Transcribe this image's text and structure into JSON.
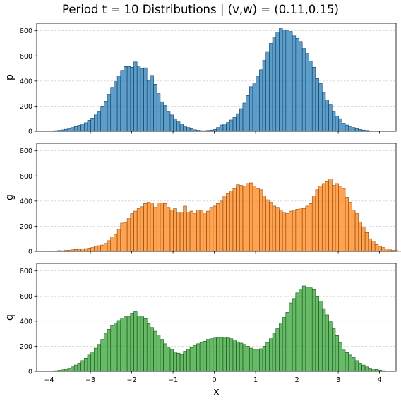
{
  "title": "Period t = 10 Distributions | (v,w) = (0.11,0.15)",
  "chart_data": [
    {
      "type": "bar",
      "ylabel": "p",
      "xlabel": "",
      "color": "#1f77b4",
      "ylim": [
        0,
        860
      ],
      "xlim": [
        -4.3,
        4.4
      ],
      "yticks": [
        0,
        200,
        400,
        600,
        800
      ],
      "xticks": [
        -4,
        -3,
        -2,
        -1,
        0,
        1,
        2,
        3,
        4
      ],
      "grid": "y dashed",
      "bin_start": -3.95,
      "bin_width": 0.08,
      "values": [
        2,
        5,
        8,
        11,
        16,
        22,
        30,
        38,
        48,
        58,
        68,
        88,
        105,
        130,
        160,
        200,
        240,
        295,
        350,
        395,
        440,
        485,
        515,
        515,
        510,
        552,
        520,
        500,
        505,
        405,
        445,
        375,
        300,
        235,
        205,
        160,
        130,
        100,
        75,
        58,
        40,
        30,
        20,
        12,
        8,
        5,
        5,
        7,
        10,
        15,
        30,
        50,
        60,
        70,
        90,
        110,
        140,
        180,
        225,
        285,
        355,
        385,
        435,
        490,
        565,
        635,
        700,
        750,
        790,
        820,
        808,
        808,
        795,
        760,
        740,
        715,
        660,
        620,
        560,
        510,
        420,
        380,
        310,
        250,
        210,
        160,
        120,
        100,
        65,
        50,
        40,
        30,
        22,
        15,
        10,
        7,
        4
      ]
    },
    {
      "type": "bar",
      "ylabel": "g",
      "xlabel": "",
      "color": "#ff7f0e",
      "ylim": [
        0,
        860
      ],
      "xlim": [
        -4.3,
        4.4
      ],
      "yticks": [
        0,
        200,
        400,
        600,
        800
      ],
      "xticks": [
        -4,
        -3,
        -2,
        -1,
        0,
        1,
        2,
        3,
        4
      ],
      "grid": "y dashed",
      "bin_start": -3.95,
      "bin_width": 0.08,
      "values": [
        0,
        3,
        6,
        5,
        8,
        9,
        12,
        15,
        17,
        20,
        22,
        26,
        30,
        40,
        45,
        50,
        63,
        85,
        115,
        135,
        175,
        225,
        230,
        260,
        300,
        320,
        340,
        355,
        380,
        390,
        385,
        350,
        385,
        385,
        380,
        350,
        330,
        340,
        310,
        310,
        360,
        310,
        320,
        300,
        330,
        330,
        305,
        320,
        350,
        360,
        380,
        400,
        440,
        460,
        480,
        500,
        530,
        525,
        520,
        540,
        545,
        520,
        500,
        490,
        440,
        410,
        390,
        360,
        350,
        330,
        310,
        300,
        320,
        330,
        335,
        345,
        340,
        360,
        380,
        440,
        490,
        520,
        540,
        555,
        575,
        525,
        540,
        520,
        500,
        430,
        390,
        330,
        300,
        235,
        195,
        150,
        100,
        82,
        55,
        40,
        30,
        21,
        12,
        8,
        6,
        3
      ]
    },
    {
      "type": "bar",
      "ylabel": "q",
      "xlabel": "x",
      "color": "#2ca02c",
      "ylim": [
        0,
        860
      ],
      "xlim": [
        -4.3,
        4.4
      ],
      "yticks": [
        0,
        200,
        400,
        600,
        800
      ],
      "xticks": [
        -4,
        -3,
        -2,
        -1,
        0,
        1,
        2,
        3,
        4
      ],
      "xticklabels": [
        "−4",
        "−3",
        "−2",
        "−1",
        "0",
        "1",
        "2",
        "3",
        "4"
      ],
      "grid": "y dashed",
      "bin_start": -3.95,
      "bin_width": 0.08,
      "values": [
        3,
        5,
        8,
        12,
        17,
        25,
        35,
        50,
        65,
        85,
        105,
        130,
        155,
        185,
        215,
        255,
        300,
        335,
        365,
        385,
        405,
        425,
        435,
        435,
        460,
        475,
        440,
        440,
        420,
        380,
        350,
        320,
        290,
        255,
        220,
        195,
        175,
        155,
        145,
        135,
        160,
        175,
        190,
        205,
        220,
        230,
        240,
        255,
        260,
        265,
        270,
        270,
        265,
        270,
        260,
        250,
        235,
        225,
        215,
        200,
        185,
        175,
        170,
        180,
        200,
        230,
        260,
        300,
        340,
        385,
        430,
        470,
        545,
        580,
        625,
        655,
        680,
        665,
        665,
        650,
        600,
        560,
        500,
        450,
        395,
        340,
        285,
        230,
        170,
        150,
        130,
        110,
        85,
        65,
        50,
        35,
        25,
        20,
        15,
        10,
        5
      ]
    }
  ]
}
